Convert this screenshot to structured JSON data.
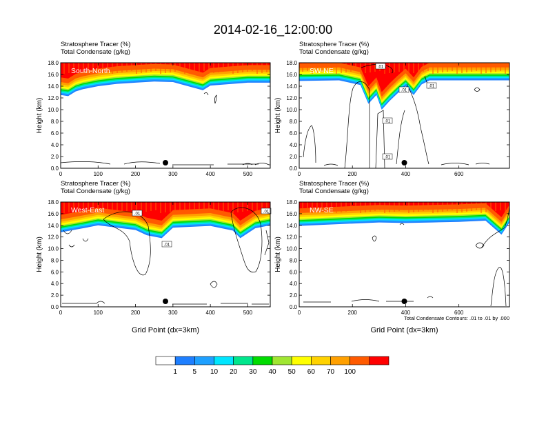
{
  "title": "2014-02-16_12:00:00",
  "colors": {
    "levels": [
      "#ffffff",
      "#1e7fff",
      "#1ea0ff",
      "#00e6ff",
      "#00e68c",
      "#00dc00",
      "#a0e632",
      "#ffff00",
      "#ffd200",
      "#ffa000",
      "#ff5a00",
      "#ff0000"
    ],
    "contour": "#000000",
    "marker": "#000000"
  },
  "chart_data": [
    {
      "type": "heatmap",
      "title": "Stratosphere Tracer   (%)",
      "subtitle": "Total Condensate   (g/kg)",
      "panel_label": "South-North",
      "ylabel": "Height (km)",
      "xlabel": "",
      "ylim": [
        0,
        18
      ],
      "yticks": [
        "0.0",
        "2.0",
        "4.0",
        "6.0",
        "8.0",
        "10.0",
        "12.0",
        "14.0",
        "16.0",
        "18.0"
      ],
      "xlim": [
        0,
        560
      ],
      "xticks": [
        0,
        100,
        200,
        300,
        400,
        500
      ],
      "marker_x": 280,
      "profile": [
        {
          "x": 0,
          "base": 12.5
        },
        {
          "x": 20,
          "base": 12.3
        },
        {
          "x": 40,
          "base": 13.1
        },
        {
          "x": 60,
          "base": 13.5
        },
        {
          "x": 100,
          "base": 14.0
        },
        {
          "x": 150,
          "base": 14.4
        },
        {
          "x": 200,
          "base": 14.6
        },
        {
          "x": 250,
          "base": 14.8
        },
        {
          "x": 300,
          "base": 14.7
        },
        {
          "x": 380,
          "base": 13.3
        },
        {
          "x": 400,
          "base": 14.1
        },
        {
          "x": 500,
          "base": 14.6
        },
        {
          "x": 560,
          "base": 14.6
        }
      ]
    },
    {
      "type": "heatmap",
      "title": "Stratosphere Tracer   (%)",
      "subtitle": "Total Condensate   (g/kg)",
      "panel_label": "SW-NE",
      "ylabel": "Height (km)",
      "xlabel": "",
      "ylim": [
        0,
        18
      ],
      "yticks": [
        "0.0",
        "2.0",
        "4.0",
        "6.0",
        "8.0",
        "10.0",
        "12.0",
        "14.0",
        "16.0",
        "18.0"
      ],
      "xlim": [
        0,
        790
      ],
      "xticks": [
        0,
        200,
        400,
        600
      ],
      "marker_x": 395,
      "profile": [
        {
          "x": 0,
          "base": 14.9
        },
        {
          "x": 150,
          "base": 15.0
        },
        {
          "x": 230,
          "base": 14.2
        },
        {
          "x": 260,
          "base": 11.0
        },
        {
          "x": 290,
          "base": 12.5
        },
        {
          "x": 310,
          "base": 10.0
        },
        {
          "x": 340,
          "base": 11.5
        },
        {
          "x": 370,
          "base": 12.8
        },
        {
          "x": 400,
          "base": 14.0
        },
        {
          "x": 430,
          "base": 12.5
        },
        {
          "x": 460,
          "base": 14.3
        },
        {
          "x": 490,
          "base": 15.0
        },
        {
          "x": 790,
          "base": 15.0
        }
      ]
    },
    {
      "type": "heatmap",
      "title": "Stratosphere Tracer   (%)",
      "subtitle": "Total Condensate   (g/kg)",
      "panel_label": "West-East",
      "ylabel": "Height (km)",
      "xlabel": "Grid Point (dx=3km)",
      "ylim": [
        0,
        18
      ],
      "yticks": [
        "0.0",
        "2.0",
        "4.0",
        "6.0",
        "8.0",
        "10.0",
        "12.0",
        "14.0",
        "16.0",
        "18.0"
      ],
      "xlim": [
        0,
        560
      ],
      "xticks": [
        0,
        100,
        200,
        300,
        400,
        500
      ],
      "marker_x": 280,
      "profile": [
        {
          "x": 0,
          "base": 12.8
        },
        {
          "x": 60,
          "base": 13.5
        },
        {
          "x": 100,
          "base": 14.0
        },
        {
          "x": 200,
          "base": 13.2
        },
        {
          "x": 230,
          "base": 12.3
        },
        {
          "x": 270,
          "base": 11.8
        },
        {
          "x": 300,
          "base": 13.6
        },
        {
          "x": 400,
          "base": 13.9
        },
        {
          "x": 460,
          "base": 13.1
        },
        {
          "x": 480,
          "base": 11.8
        },
        {
          "x": 520,
          "base": 13.5
        },
        {
          "x": 560,
          "base": 14.0
        }
      ]
    },
    {
      "type": "heatmap",
      "title": "Stratosphere Tracer   (%)",
      "subtitle": "Total Condensate   (g/kg)",
      "panel_label": "NW-SE",
      "ylabel": "Height (km)",
      "xlabel": "Grid Point (dx=3km)",
      "ylim": [
        0,
        18
      ],
      "yticks": [
        "0.0",
        "2.0",
        "4.0",
        "6.0",
        "8.0",
        "10.0",
        "12.0",
        "14.0",
        "16.0",
        "18.0"
      ],
      "xlim": [
        0,
        790
      ],
      "xticks": [
        0,
        200,
        400,
        600
      ],
      "marker_x": 395,
      "profile": [
        {
          "x": 0,
          "base": 13.9
        },
        {
          "x": 100,
          "base": 14.1
        },
        {
          "x": 200,
          "base": 14.3
        },
        {
          "x": 300,
          "base": 14.5
        },
        {
          "x": 400,
          "base": 14.4
        },
        {
          "x": 500,
          "base": 14.5
        },
        {
          "x": 600,
          "base": 14.6
        },
        {
          "x": 700,
          "base": 14.8
        },
        {
          "x": 760,
          "base": 12.4
        },
        {
          "x": 790,
          "base": 14.5
        }
      ]
    }
  ],
  "contour_note": "Total Condensate Contours: .01 to .01 by .000",
  "contour_labels": [
    ".01",
    ".01",
    ".01",
    ".01"
  ],
  "colorbar": {
    "labels": [
      "1",
      "5",
      "10",
      "20",
      "30",
      "40",
      "50",
      "60",
      "70",
      "100"
    ]
  }
}
